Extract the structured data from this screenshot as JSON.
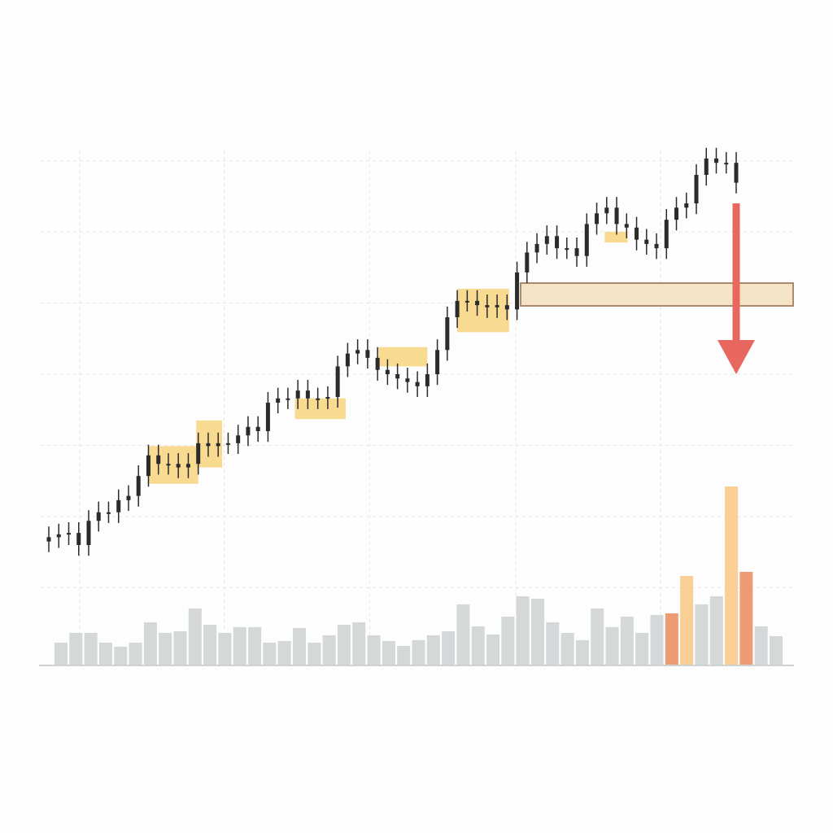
{
  "chart_data": {
    "type": "candlestick",
    "open": [
      1.65,
      1.71,
      1.75,
      1.77,
      1.6,
      1.94,
      2.06,
      2.06,
      2.23,
      2.29,
      2.57,
      2.86,
      2.74,
      2.74,
      2.69,
      2.74,
      3.03,
      2.99,
      3.03,
      3.03,
      3.14,
      3.26,
      3.2,
      3.6,
      3.66,
      3.66,
      3.77,
      3.66,
      3.66,
      3.68,
      4.11,
      4.29,
      4.34,
      4.23,
      4.06,
      4.0,
      3.94,
      3.89,
      3.83,
      4.0,
      4.34,
      4.8,
      5.03,
      5.03,
      4.97,
      4.94,
      4.97,
      4.91,
      5.43,
      5.71,
      5.83,
      5.94,
      5.77,
      5.77,
      5.66,
      6.11,
      6.26,
      6.34,
      6.11,
      6.06,
      5.89,
      5.83,
      5.77,
      6.17,
      6.34,
      6.4,
      6.8,
      7.03,
      6.97,
      6.97
    ],
    "high": [
      1.86,
      1.9,
      1.92,
      1.92,
      2.09,
      2.21,
      2.21,
      2.38,
      2.44,
      2.72,
      3.01,
      3.01,
      2.89,
      2.89,
      2.89,
      3.18,
      3.18,
      3.18,
      3.18,
      3.29,
      3.41,
      3.41,
      3.75,
      3.81,
      3.81,
      3.92,
      3.92,
      3.81,
      3.83,
      4.26,
      4.44,
      4.49,
      4.49,
      4.38,
      4.21,
      4.15,
      4.09,
      4.04,
      4.15,
      4.49,
      4.95,
      5.18,
      5.18,
      5.18,
      5.12,
      5.12,
      5.12,
      5.58,
      5.86,
      5.98,
      6.09,
      6.09,
      5.92,
      5.92,
      6.26,
      6.41,
      6.49,
      6.49,
      6.26,
      6.21,
      6.04,
      5.98,
      6.32,
      6.49,
      6.55,
      6.95,
      7.18,
      7.18,
      7.12,
      7.12
    ],
    "low": [
      1.5,
      1.56,
      1.6,
      1.45,
      1.45,
      1.79,
      1.91,
      1.91,
      2.08,
      2.14,
      2.42,
      2.59,
      2.59,
      2.54,
      2.54,
      2.59,
      2.84,
      2.84,
      2.88,
      2.88,
      2.99,
      3.05,
      3.05,
      3.45,
      3.51,
      3.51,
      3.51,
      3.51,
      3.51,
      3.53,
      3.96,
      4.14,
      4.08,
      3.91,
      3.85,
      3.79,
      3.74,
      3.68,
      3.68,
      3.85,
      4.19,
      4.65,
      4.88,
      4.82,
      4.79,
      4.79,
      4.76,
      4.76,
      5.28,
      5.56,
      5.68,
      5.62,
      5.62,
      5.51,
      5.51,
      5.96,
      6.11,
      5.96,
      5.91,
      5.74,
      5.68,
      5.62,
      5.62,
      6.02,
      6.19,
      6.25,
      6.65,
      6.82,
      6.82,
      6.54
    ],
    "close": [
      1.71,
      1.75,
      1.77,
      1.6,
      1.94,
      2.06,
      2.06,
      2.23,
      2.29,
      2.57,
      2.86,
      2.74,
      2.74,
      2.69,
      2.74,
      3.03,
      2.99,
      3.03,
      3.03,
      3.14,
      3.26,
      3.2,
      3.6,
      3.66,
      3.66,
      3.77,
      3.66,
      3.66,
      3.68,
      4.11,
      4.29,
      4.34,
      4.23,
      4.06,
      4.0,
      3.94,
      3.89,
      3.83,
      4.0,
      4.34,
      4.8,
      5.03,
      5.03,
      4.97,
      4.94,
      4.97,
      4.91,
      5.43,
      5.71,
      5.83,
      5.94,
      5.77,
      5.77,
      5.66,
      6.11,
      6.26,
      6.34,
      6.11,
      6.06,
      5.89,
      5.83,
      5.77,
      6.17,
      6.34,
      6.4,
      6.8,
      7.03,
      6.97,
      6.97,
      6.69
    ],
    "color": "#2b2b2b",
    "ylim": [
      0,
      8
    ],
    "yticks": [
      1,
      2,
      3,
      4,
      5,
      6,
      7
    ],
    "xlim": [
      0,
      69
    ],
    "xticks": [
      3.1,
      17.6,
      32.2,
      46.9,
      61.4
    ],
    "grid": true,
    "zones": [
      {
        "x": [
          10,
          15
        ],
        "y": [
          2.46,
          2.99
        ]
      },
      {
        "x": [
          14.8,
          17.4
        ],
        "y": [
          2.69,
          3.35
        ]
      },
      {
        "x": [
          24.7,
          29.8
        ],
        "y": [
          3.37,
          3.66
        ]
      },
      {
        "x": [
          33.1,
          38
        ],
        "y": [
          4.11,
          4.38
        ]
      },
      {
        "x": [
          41,
          46.2
        ],
        "y": [
          4.59,
          5.2
        ]
      },
      {
        "x": [
          55.8,
          58.1
        ],
        "y": [
          5.85,
          6.0
        ]
      }
    ],
    "zone_color": "#f8d47e",
    "level": {
      "low": 4.96,
      "high": 5.28,
      "color": "#f5e3c8",
      "edge": "#a98a6a"
    },
    "arrow": {
      "from": 6.4,
      "to": 4.0,
      "color": "#e8675e"
    },
    "volume": {
      "values": [
        28,
        40,
        40,
        28,
        23,
        28,
        53,
        40,
        42,
        70,
        50,
        40,
        47,
        47,
        28,
        30,
        46,
        28,
        37,
        50,
        53,
        37,
        30,
        24,
        31,
        37,
        42,
        75,
        48,
        38,
        60,
        85,
        82,
        53,
        40,
        31,
        70,
        47,
        60,
        40,
        62,
        64,
        110,
        75,
        85,
        220,
        115,
        48,
        36
      ],
      "colors": [
        "#d5d8d8",
        "#d5d8d8",
        "#d5d8d8",
        "#d5d8d8",
        "#d5d8d8",
        "#d5d8d8",
        "#d5d8d8",
        "#d5d8d8",
        "#d5d8d8",
        "#d5d8d8",
        "#d5d8d8",
        "#d5d8d8",
        "#d5d8d8",
        "#d5d8d8",
        "#d5d8d8",
        "#d5d8d8",
        "#d5d8d8",
        "#d5d8d8",
        "#d5d8d8",
        "#d5d8d8",
        "#d5d8d8",
        "#d5d8d8",
        "#d5d8d8",
        "#d5d8d8",
        "#d5d8d8",
        "#d5d8d8",
        "#d5d8d8",
        "#d5d8d8",
        "#d5d8d8",
        "#d5d8d8",
        "#d5d8d8",
        "#d5d8d8",
        "#d5d8d8",
        "#d5d8d8",
        "#d5d8d8",
        "#d5d8d8",
        "#d5d8d8",
        "#d5d8d8",
        "#d5d8d8",
        "#d5d8d8",
        "#d5d8d8",
        "#ee9a72",
        "#f9cf96",
        "#d5d8d8",
        "#d5d8d8",
        "#f9cf96",
        "#ee9a72",
        "#d5d8d8",
        "#d5d8d8"
      ]
    }
  }
}
